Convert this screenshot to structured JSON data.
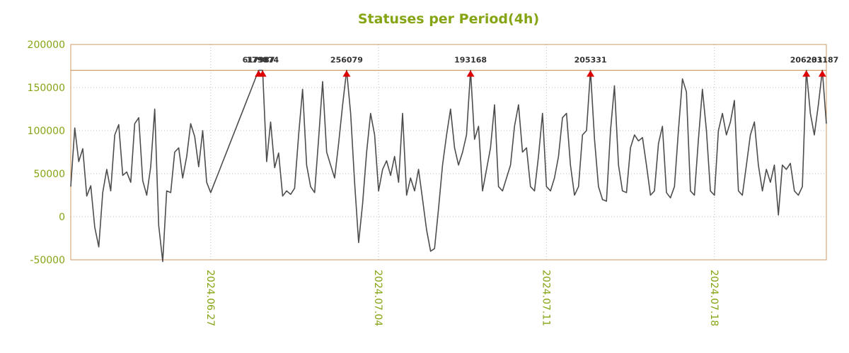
{
  "chart_data": {
    "type": "line",
    "title": "Statuses per Period(4h)",
    "ylim": [
      -50000,
      200000
    ],
    "yticks": [
      200000,
      150000,
      100000,
      50000,
      0,
      -50000
    ],
    "xticks": [
      {
        "label": "2024.06.27",
        "index": 35
      },
      {
        "label": "2024.07.04",
        "index": 77
      },
      {
        "label": "2024.07.11",
        "index": 119
      },
      {
        "label": "2024.07.18",
        "index": 161
      }
    ],
    "cap_line_value": 170000,
    "annotations": [
      {
        "index": 47,
        "label": "617987",
        "value": 617987
      },
      {
        "index": 48,
        "label": "179874",
        "value": 179874
      },
      {
        "index": 69,
        "label": "256079",
        "value": 256079
      },
      {
        "index": 100,
        "label": "193168",
        "value": 193168
      },
      {
        "index": 130,
        "label": "205331",
        "value": 205331
      },
      {
        "index": 184,
        "label": "206231",
        "value": 206231
      },
      {
        "index": 188,
        "label": "203187",
        "value": 203187
      }
    ],
    "series": [
      {
        "name": "statuses",
        "values": [
          35000,
          103000,
          64000,
          79000,
          24000,
          36000,
          -12000,
          -35000,
          28000,
          55000,
          30000,
          95000,
          107000,
          48000,
          52000,
          40000,
          108000,
          115000,
          42000,
          25000,
          58000,
          125000,
          -10000,
          -52000,
          30000,
          28000,
          75000,
          80000,
          45000,
          70000,
          108000,
          93000,
          58000,
          100000,
          40000,
          28000,
          39833,
          51667,
          63500,
          75333,
          87167,
          99000,
          110833,
          122667,
          134500,
          146333,
          158167,
          170000,
          170000,
          64000,
          110000,
          57000,
          74000,
          24000,
          30000,
          26000,
          33000,
          95000,
          148000,
          60000,
          35000,
          28000,
          90000,
          157000,
          75000,
          60000,
          45000,
          85000,
          130000,
          170000,
          120000,
          40000,
          -30000,
          15000,
          75000,
          120000,
          95000,
          30000,
          55000,
          65000,
          48000,
          70000,
          40000,
          120000,
          25000,
          45000,
          30000,
          55000,
          20000,
          -15000,
          -40000,
          -37000,
          10000,
          60000,
          95000,
          125000,
          80000,
          60000,
          75000,
          95000,
          170000,
          90000,
          105000,
          30000,
          55000,
          80000,
          130000,
          35000,
          30000,
          45000,
          60000,
          105000,
          130000,
          75000,
          80000,
          35000,
          30000,
          70000,
          120000,
          35000,
          30000,
          45000,
          70000,
          115000,
          120000,
          60000,
          25000,
          35000,
          95000,
          100000,
          170000,
          90000,
          35000,
          20000,
          18000,
          100000,
          152000,
          60000,
          30000,
          28000,
          80000,
          95000,
          88000,
          92000,
          60000,
          25000,
          30000,
          85000,
          105000,
          28000,
          22000,
          35000,
          100000,
          160000,
          145000,
          30000,
          25000,
          90000,
          148000,
          100000,
          30000,
          25000,
          100000,
          120000,
          95000,
          110000,
          135000,
          30000,
          25000,
          60000,
          95000,
          110000,
          60000,
          30000,
          55000,
          40000,
          60000,
          2000,
          60000,
          55000,
          62000,
          30000,
          25000,
          35000,
          170000,
          120000,
          95000,
          130000,
          170000,
          108000
        ]
      }
    ],
    "colors": {
      "line": "#4d4d4d",
      "grid": "#bbbbbb",
      "axis_text": "#85a515",
      "title": "#85a515",
      "cap_line": "#cc8844",
      "border": "#cc9966",
      "marker": "#dd0000",
      "annotation_text": "#333333"
    },
    "legend": "off",
    "grid": "dotted"
  }
}
